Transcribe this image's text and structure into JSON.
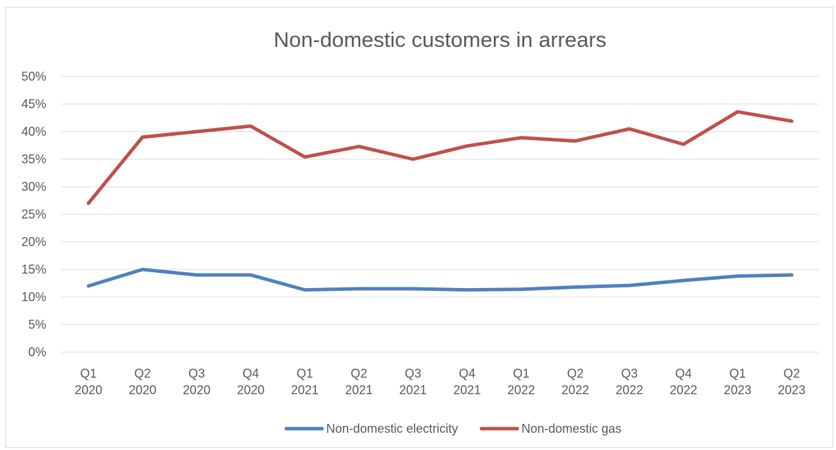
{
  "chart_data": {
    "type": "line",
    "title": "Non-domestic customers in arrears",
    "xlabel": "",
    "ylabel": "",
    "categories": [
      [
        "Q1",
        "2020"
      ],
      [
        "Q2",
        "2020"
      ],
      [
        "Q3",
        "2020"
      ],
      [
        "Q4",
        "2020"
      ],
      [
        "Q1",
        "2021"
      ],
      [
        "Q2",
        "2021"
      ],
      [
        "Q3",
        "2021"
      ],
      [
        "Q4",
        "2021"
      ],
      [
        "Q1",
        "2022"
      ],
      [
        "Q2",
        "2022"
      ],
      [
        "Q3",
        "2022"
      ],
      [
        "Q4",
        "2022"
      ],
      [
        "Q1",
        "2023"
      ],
      [
        "Q2",
        "2023"
      ]
    ],
    "ylim": [
      0,
      50
    ],
    "yticks": [
      0,
      5,
      10,
      15,
      20,
      25,
      30,
      35,
      40,
      45,
      50
    ],
    "ytick_suffix": "%",
    "grid": true,
    "legend_position": "bottom",
    "series": [
      {
        "name": "Non-domestic electricity",
        "color": "#4f81bd",
        "values": [
          12.0,
          15.0,
          14.0,
          14.0,
          11.3,
          11.5,
          11.5,
          11.3,
          11.4,
          11.8,
          12.1,
          13.0,
          13.8,
          14.0
        ]
      },
      {
        "name": "Non-domestic gas",
        "color": "#c0504d",
        "values": [
          27.0,
          39.0,
          40.0,
          41.0,
          35.4,
          37.3,
          35.0,
          37.4,
          38.9,
          38.3,
          40.5,
          37.7,
          43.6,
          41.9
        ]
      }
    ]
  }
}
